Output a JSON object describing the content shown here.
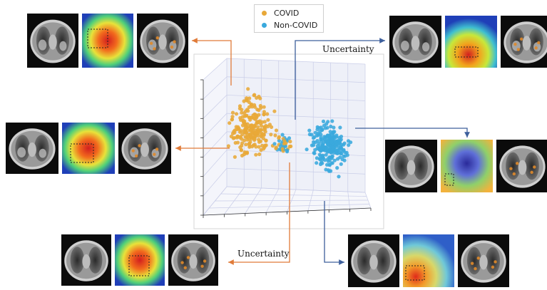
{
  "legend": {
    "items": [
      {
        "label": "COVID",
        "color": "#e8a838"
      },
      {
        "label": "Non-COVID",
        "color": "#3aa9dd"
      }
    ]
  },
  "annotations": {
    "uncertainty_top": "Uncertainty",
    "uncertainty_bottom": "Uncertainty"
  },
  "colors": {
    "covid": "#e8a838",
    "noncovid": "#3aa9dd",
    "arrow_orange": "#e07b39",
    "arrow_blue": "#3d5f9c"
  },
  "panels": [
    {
      "id": "top-left",
      "class": "COVID"
    },
    {
      "id": "mid-left",
      "class": "COVID"
    },
    {
      "id": "bottom-left",
      "class": "COVID"
    },
    {
      "id": "top-right",
      "class": "Non-COVID"
    },
    {
      "id": "mid-right",
      "class": "Non-COVID"
    },
    {
      "id": "bottom-right",
      "class": "Non-COVID"
    }
  ]
}
